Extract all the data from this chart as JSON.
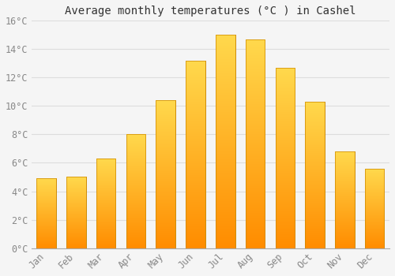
{
  "title": "Average monthly temperatures (°C ) in Cashel",
  "months": [
    "Jan",
    "Feb",
    "Mar",
    "Apr",
    "May",
    "Jun",
    "Jul",
    "Aug",
    "Sep",
    "Oct",
    "Nov",
    "Dec"
  ],
  "values": [
    4.9,
    5.0,
    6.3,
    8.0,
    10.4,
    13.2,
    15.0,
    14.7,
    12.7,
    10.3,
    6.8,
    5.6
  ],
  "bar_color": "#FFA500",
  "bar_edge_color": "#CC8800",
  "background_color": "#F5F5F5",
  "plot_bg_color": "#F5F5F5",
  "grid_color": "#DDDDDD",
  "tick_label_color": "#888888",
  "title_color": "#333333",
  "ylim": [
    0,
    16
  ],
  "ytick_step": 2,
  "figsize": [
    5.0,
    3.5
  ],
  "dpi": 100
}
